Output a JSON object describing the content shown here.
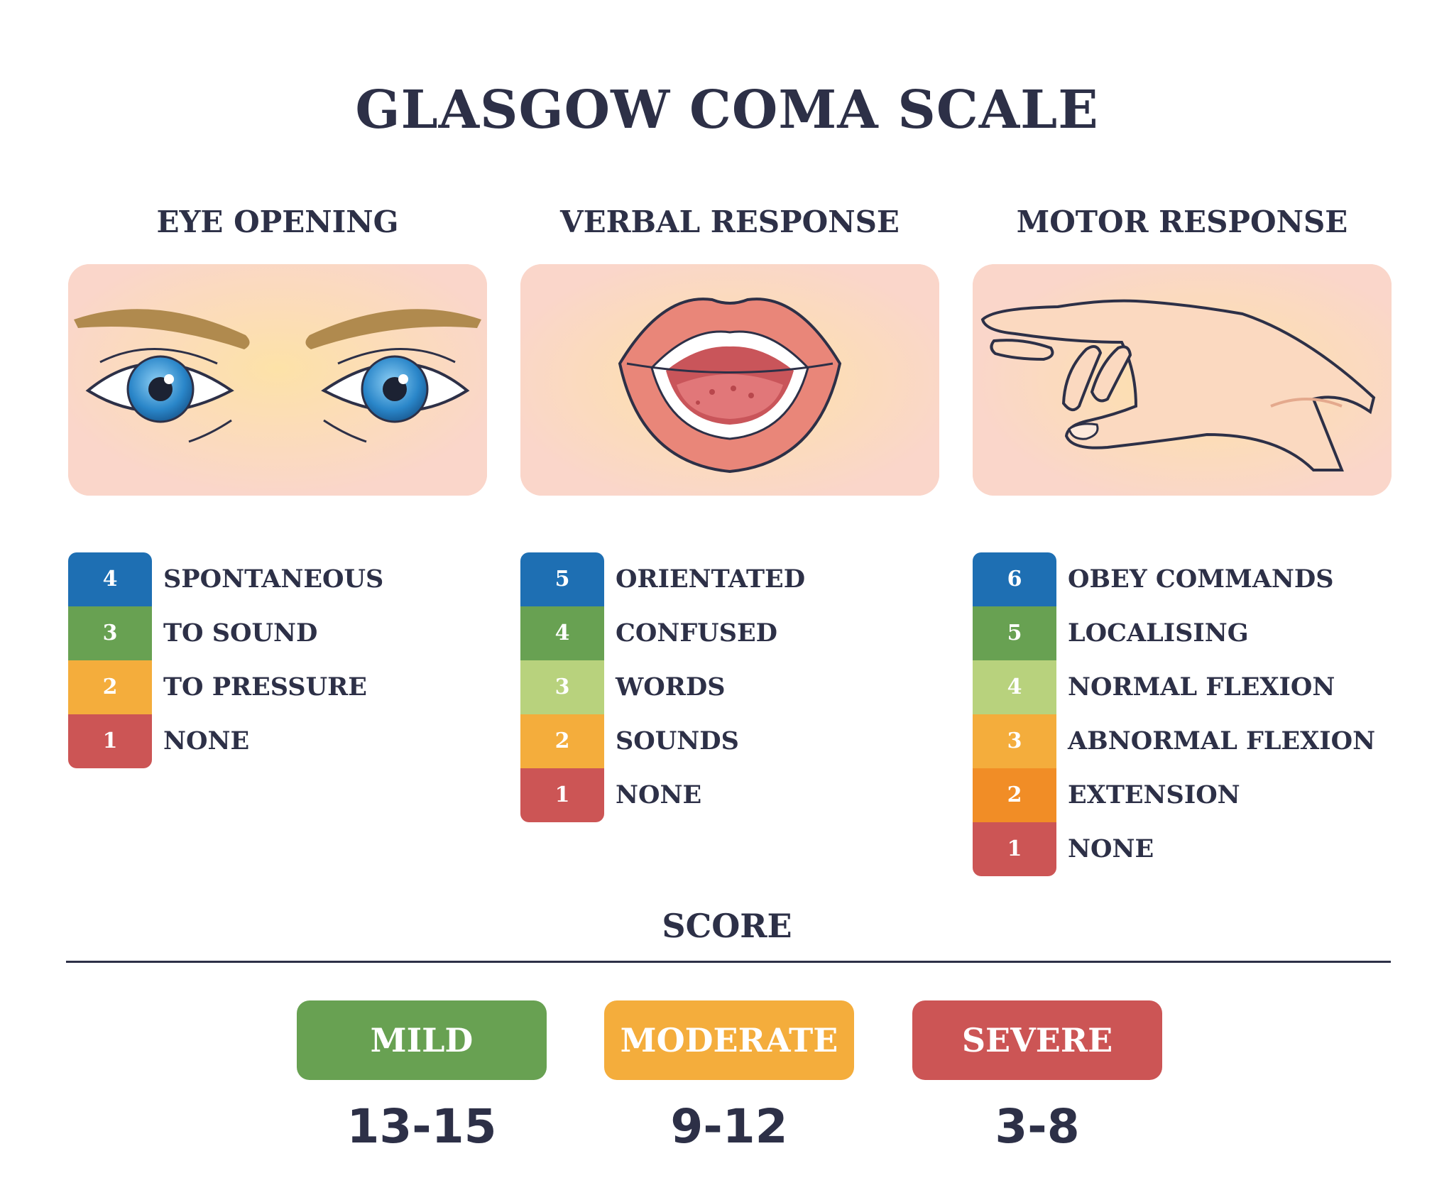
{
  "title": "GLASGOW COMA SCALE",
  "colors": {
    "blue": "#1e6fb3",
    "green": "#68a152",
    "light_green": "#b8d27d",
    "yellow": "#f4ad3c",
    "orange": "#f18d26",
    "red": "#cc5555",
    "text": "#2d3047",
    "panel": "#fad6ca"
  },
  "sections": [
    {
      "title": "EYE OPENING",
      "illustration": "eyes-icon",
      "items": [
        {
          "score": "4",
          "label": "SPONTANEOUS",
          "color": "#1e6fb3"
        },
        {
          "score": "3",
          "label": "TO SOUND",
          "color": "#68a152"
        },
        {
          "score": "2",
          "label": "TO PRESSURE",
          "color": "#f4ad3c"
        },
        {
          "score": "1",
          "label": "NONE",
          "color": "#cc5555"
        }
      ]
    },
    {
      "title": "VERBAL RESPONSE",
      "illustration": "mouth-icon",
      "items": [
        {
          "score": "5",
          "label": "ORIENTATED",
          "color": "#1e6fb3"
        },
        {
          "score": "4",
          "label": "CONFUSED",
          "color": "#68a152"
        },
        {
          "score": "3",
          "label": "WORDS",
          "color": "#b8d27d"
        },
        {
          "score": "2",
          "label": "SOUNDS",
          "color": "#f4ad3c"
        },
        {
          "score": "1",
          "label": "NONE",
          "color": "#cc5555"
        }
      ]
    },
    {
      "title": "MOTOR RESPONSE",
      "illustration": "hand-icon",
      "items": [
        {
          "score": "6",
          "label": "OBEY COMMANDS",
          "color": "#1e6fb3"
        },
        {
          "score": "5",
          "label": "LOCALISING",
          "color": "#68a152"
        },
        {
          "score": "4",
          "label": "NORMAL FLEXION",
          "color": "#b8d27d"
        },
        {
          "score": "3",
          "label": "ABNORMAL FLEXION",
          "color": "#f4ad3c"
        },
        {
          "score": "2",
          "label": "EXTENSION",
          "color": "#f18d26"
        },
        {
          "score": "1",
          "label": "NONE",
          "color": "#cc5555"
        }
      ]
    }
  ],
  "score": {
    "title": "SCORE",
    "levels": [
      {
        "label": "MILD",
        "range": "13-15",
        "color": "#68a152"
      },
      {
        "label": "MODERATE",
        "range": "9-12",
        "color": "#f4ad3c"
      },
      {
        "label": "SEVERE",
        "range": "3-8",
        "color": "#cc5555"
      }
    ]
  }
}
